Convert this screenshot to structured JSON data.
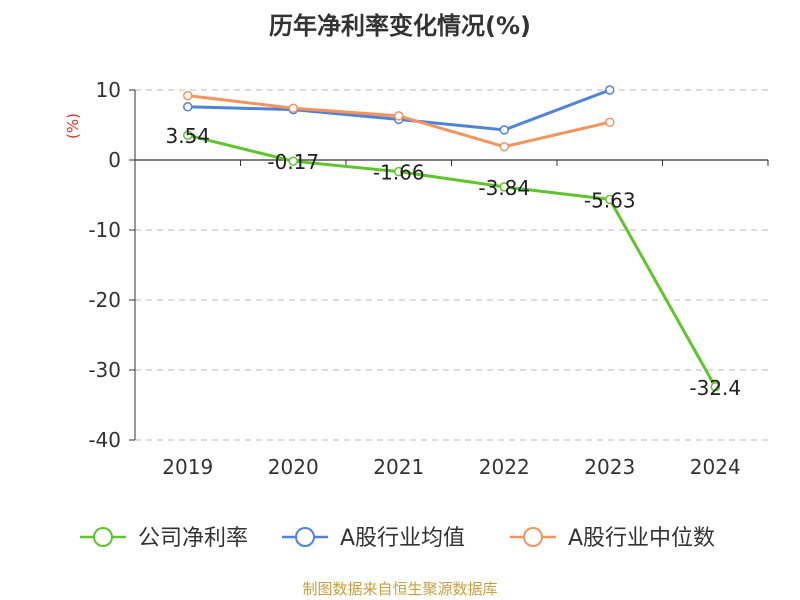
{
  "chart_data": {
    "type": "line",
    "title": "历年净利率变化情况(%)",
    "ylabel": "(%)",
    "xlabel": "",
    "categories": [
      "2019",
      "2020",
      "2021",
      "2022",
      "2023",
      "2024"
    ],
    "ylim": [
      -40,
      10
    ],
    "yticks": [
      10,
      0,
      -10,
      -20,
      -30,
      -40
    ],
    "grid": true,
    "legend_position": "bottom",
    "series": [
      {
        "name": "公司净利率",
        "color": "#5ec52b",
        "values": [
          3.54,
          -0.17,
          -1.66,
          -3.84,
          -5.63,
          -32.4
        ],
        "labels": [
          "3.54",
          "-0.17",
          "-1.66",
          "-3.84",
          "-5.63",
          "-32.4"
        ]
      },
      {
        "name": "A股行业均值",
        "color": "#4f82d9",
        "values": [
          7.6,
          7.2,
          5.8,
          4.3,
          10.0,
          null
        ]
      },
      {
        "name": "A股行业中位数",
        "color": "#f4945c",
        "values": [
          9.2,
          7.4,
          6.3,
          1.9,
          5.4,
          null
        ]
      }
    ]
  },
  "colors": {
    "title": "#333333",
    "axis": "#333333",
    "grid": "#c8c8c8",
    "ylabel": "#e0302a",
    "source": "#c8a040"
  },
  "footer": {
    "source": "制图数据来自恒生聚源数据库"
  }
}
